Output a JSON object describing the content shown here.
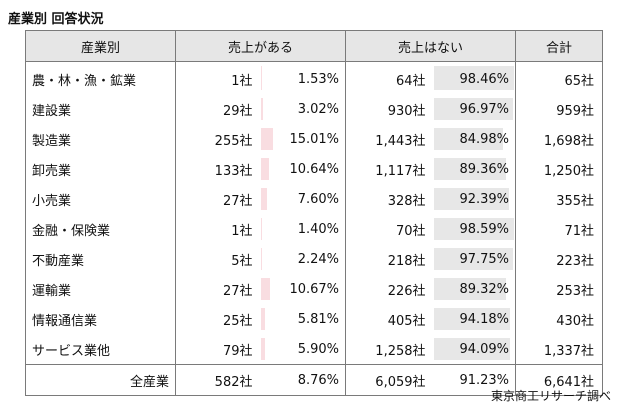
{
  "title": "産業別 回答状況",
  "source": "東京商工リサーチ調べ",
  "headers": {
    "industry": "産業別",
    "yes": "売上がある",
    "no": "売上はない",
    "total": "合計"
  },
  "colors": {
    "pink_bar": "#f9dde1",
    "gray_bar": "#e7e7e7",
    "header_bg": "#e6e6e6"
  },
  "rows": [
    {
      "industry": "農・林・漁・鉱業",
      "yes_count": "1社",
      "yes_pct": "1.53%",
      "yes_val": 1.53,
      "no_count": "64社",
      "no_pct": "98.46%",
      "no_val": 98.46,
      "total": "65社"
    },
    {
      "industry": "建設業",
      "yes_count": "29社",
      "yes_pct": "3.02%",
      "yes_val": 3.02,
      "no_count": "930社",
      "no_pct": "96.97%",
      "no_val": 96.97,
      "total": "959社"
    },
    {
      "industry": "製造業",
      "yes_count": "255社",
      "yes_pct": "15.01%",
      "yes_val": 15.01,
      "no_count": "1,443社",
      "no_pct": "84.98%",
      "no_val": 84.98,
      "total": "1,698社"
    },
    {
      "industry": "卸売業",
      "yes_count": "133社",
      "yes_pct": "10.64%",
      "yes_val": 10.64,
      "no_count": "1,117社",
      "no_pct": "89.36%",
      "no_val": 89.36,
      "total": "1,250社"
    },
    {
      "industry": "小売業",
      "yes_count": "27社",
      "yes_pct": "7.60%",
      "yes_val": 7.6,
      "no_count": "328社",
      "no_pct": "92.39%",
      "no_val": 92.39,
      "total": "355社"
    },
    {
      "industry": "金融・保険業",
      "yes_count": "1社",
      "yes_pct": "1.40%",
      "yes_val": 1.4,
      "no_count": "70社",
      "no_pct": "98.59%",
      "no_val": 98.59,
      "total": "71社"
    },
    {
      "industry": "不動産業",
      "yes_count": "5社",
      "yes_pct": "2.24%",
      "yes_val": 2.24,
      "no_count": "218社",
      "no_pct": "97.75%",
      "no_val": 97.75,
      "total": "223社"
    },
    {
      "industry": "運輸業",
      "yes_count": "27社",
      "yes_pct": "10.67%",
      "yes_val": 10.67,
      "no_count": "226社",
      "no_pct": "89.32%",
      "no_val": 89.32,
      "total": "253社"
    },
    {
      "industry": "情報通信業",
      "yes_count": "25社",
      "yes_pct": "5.81%",
      "yes_val": 5.81,
      "no_count": "405社",
      "no_pct": "94.18%",
      "no_val": 94.18,
      "total": "430社"
    },
    {
      "industry": "サービス業他",
      "yes_count": "79社",
      "yes_pct": "5.90%",
      "yes_val": 5.9,
      "no_count": "1,258社",
      "no_pct": "94.09%",
      "no_val": 94.09,
      "total": "1,337社"
    }
  ],
  "total_row": {
    "industry": "全産業",
    "yes_count": "582社",
    "yes_pct": "8.76%",
    "no_count": "6,059社",
    "no_pct": "91.23%",
    "total": "6,641社"
  }
}
